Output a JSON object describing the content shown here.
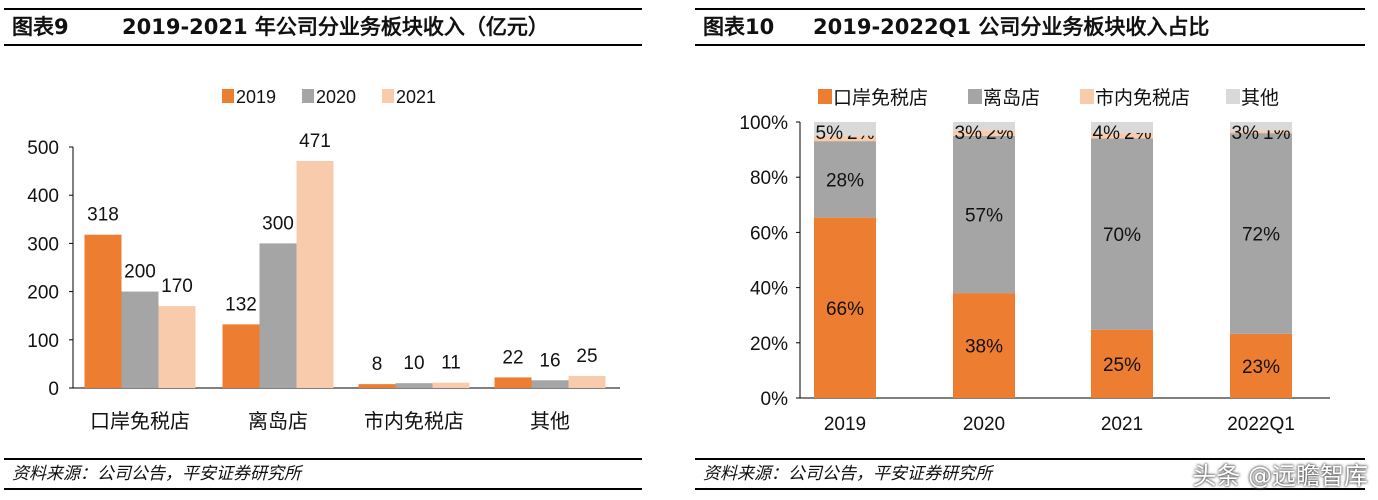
{
  "left": {
    "label": "图表9",
    "title": "2019-2021 年公司分业务板块收入（亿元）",
    "source": "资料来源：公司公告，平安证券研究所"
  },
  "right": {
    "label": "图表10",
    "title": "2019-2022Q1 公司分业务板块收入占比",
    "source": "资料来源：公司公告，平安证券研究所"
  },
  "watermark": "头条 @远瞻智库",
  "chart_data": [
    {
      "type": "bar",
      "categories": [
        "口岸免税店",
        "离岛店",
        "市内免税店",
        "其他"
      ],
      "series": [
        {
          "name": "2019",
          "values": [
            318,
            132,
            8,
            22
          ],
          "color": "#ED7D31"
        },
        {
          "name": "2020",
          "values": [
            200,
            300,
            10,
            16
          ],
          "color": "#A5A5A5"
        },
        {
          "name": "2021",
          "values": [
            170,
            471,
            11,
            25
          ],
          "color": "#F8CBAD"
        }
      ],
      "ylim": [
        0,
        500
      ],
      "yticks": [
        0,
        100,
        200,
        300,
        400,
        500
      ],
      "legend": "top",
      "grid": false
    },
    {
      "type": "bar",
      "stacked": true,
      "categories": [
        "2019",
        "2020",
        "2021",
        "2022Q1"
      ],
      "series": [
        {
          "name": "口岸免税店",
          "values": [
            66,
            38,
            25,
            23
          ],
          "color": "#ED7D31"
        },
        {
          "name": "离岛店",
          "values": [
            28,
            57,
            70,
            72
          ],
          "color": "#A5A5A5"
        },
        {
          "name": "市内免税店",
          "values": [
            2,
            2,
            2,
            1
          ],
          "color": "#F8CBAD"
        },
        {
          "name": "其他",
          "values": [
            5,
            3,
            4,
            3
          ],
          "color": "#D9D9D9"
        }
      ],
      "ylim": [
        0,
        100
      ],
      "yticks": [
        "0%",
        "20%",
        "40%",
        "60%",
        "80%",
        "100%"
      ],
      "legend": "top",
      "grid": false
    }
  ]
}
